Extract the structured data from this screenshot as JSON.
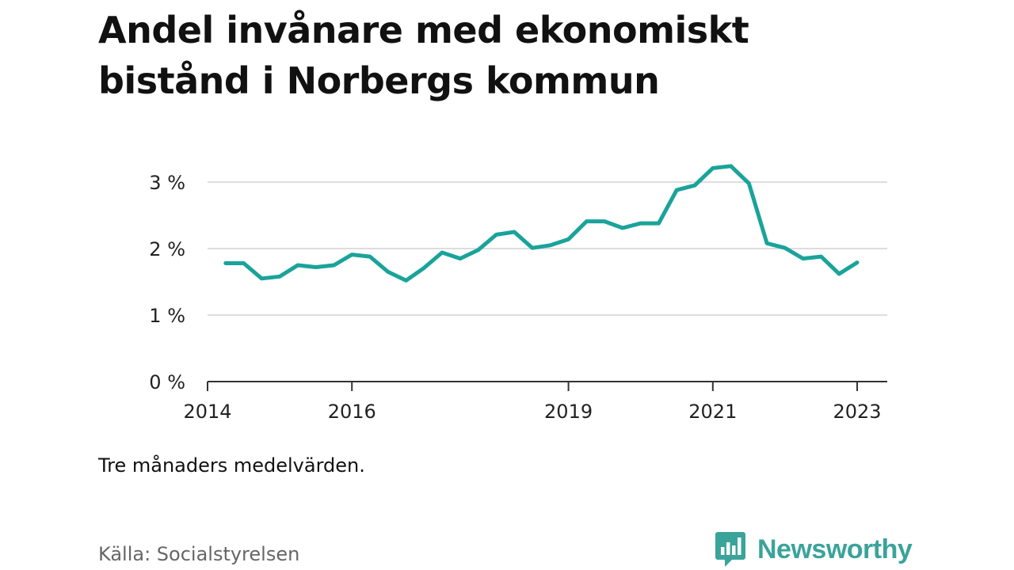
{
  "header": {
    "title": "Andel invånare med ekonomiskt bistånd i Norbergs kommun"
  },
  "note": "Tre månaders medelvärden.",
  "source": "Källa: Socialstyrelsen",
  "brand": {
    "name": "Newsworthy",
    "icon": "bar-chart-speech-bubble-icon",
    "color": "#3aa39a"
  },
  "chart_data": {
    "type": "line",
    "title": "Andel invånare med ekonomiskt bistånd i Norbergs kommun",
    "xlabel": "",
    "ylabel": "",
    "x_ticks": [
      "2014",
      "2016",
      "2019",
      "2021",
      "2023"
    ],
    "y_ticks": [
      "0 %",
      "1 %",
      "2 %",
      "3 %"
    ],
    "ylim": [
      0,
      3.3
    ],
    "xlim": [
      "2014-01",
      "2023-06"
    ],
    "grid": true,
    "line_color": "#1aa39a",
    "series": [
      {
        "x": [
          "2014-04",
          "2014-07",
          "2014-10",
          "2015-01",
          "2015-04",
          "2015-07",
          "2015-10",
          "2016-01",
          "2016-04",
          "2016-07",
          "2016-10",
          "2017-01",
          "2017-04",
          "2017-07",
          "2017-10",
          "2018-01",
          "2018-04",
          "2018-07",
          "2018-10",
          "2019-01",
          "2019-04",
          "2019-07",
          "2019-10",
          "2020-01",
          "2020-04",
          "2020-07",
          "2020-10",
          "2021-01",
          "2021-04",
          "2021-07",
          "2021-10",
          "2022-01",
          "2022-04",
          "2022-07",
          "2022-10",
          "2023-01"
        ],
        "values": [
          1.78,
          1.78,
          1.55,
          1.58,
          1.75,
          1.72,
          1.75,
          1.91,
          1.88,
          1.65,
          1.52,
          1.71,
          1.94,
          1.85,
          1.98,
          2.21,
          2.25,
          2.01,
          2.05,
          2.14,
          2.41,
          2.41,
          2.31,
          2.38,
          2.38,
          2.88,
          2.95,
          3.21,
          3.24,
          2.98,
          2.08,
          2.01,
          1.85,
          1.88,
          1.62,
          1.79
        ]
      }
    ]
  }
}
